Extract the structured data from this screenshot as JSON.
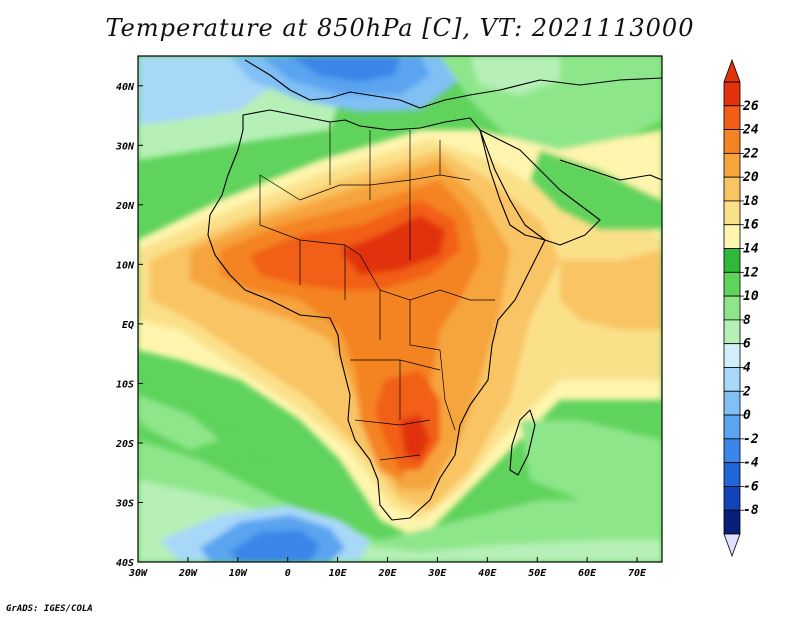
{
  "title": "Temperature at 850hPa [C], VT: 2021113000",
  "credit": "GrADS: IGES/COLA",
  "map": {
    "lon_range": [
      -30,
      75
    ],
    "lat_range": [
      -40,
      45
    ],
    "lon_ticks": [
      {
        "value": -30,
        "label": "30W"
      },
      {
        "value": -20,
        "label": "20W"
      },
      {
        "value": -10,
        "label": "10W"
      },
      {
        "value": 0,
        "label": "0"
      },
      {
        "value": 10,
        "label": "10E"
      },
      {
        "value": 20,
        "label": "20E"
      },
      {
        "value": 30,
        "label": "30E"
      },
      {
        "value": 40,
        "label": "40E"
      },
      {
        "value": 50,
        "label": "50E"
      },
      {
        "value": 60,
        "label": "60E"
      },
      {
        "value": 70,
        "label": "70E"
      }
    ],
    "lat_ticks": [
      {
        "value": 40,
        "label": "40N"
      },
      {
        "value": 30,
        "label": "30N"
      },
      {
        "value": 20,
        "label": "20N"
      },
      {
        "value": 10,
        "label": "10N"
      },
      {
        "value": 0,
        "label": "EQ"
      },
      {
        "value": -10,
        "label": "10S"
      },
      {
        "value": -20,
        "label": "20S"
      },
      {
        "value": -30,
        "label": "30S"
      },
      {
        "value": -40,
        "label": "40S"
      }
    ]
  },
  "colorbar": {
    "levels": [
      "-8",
      "-6",
      "-4",
      "-2",
      "0",
      "2",
      "4",
      "6",
      "8",
      "10",
      "12",
      "14",
      "16",
      "18",
      "20",
      "22",
      "24",
      "26"
    ],
    "colors": [
      "#0a1f78",
      "#1343b8",
      "#1f66d8",
      "#3b86e8",
      "#5aa4f0",
      "#80c0f5",
      "#a8d8f8",
      "#d2f0fb",
      "#b6f0b6",
      "#8ee68a",
      "#5fd35c",
      "#30b83a",
      "#fff5ae",
      "#fbe08a",
      "#f9c463",
      "#f6a43c",
      "#f48324",
      "#f25e16",
      "#e2320e"
    ],
    "under_color": "#e0e0ff"
  }
}
